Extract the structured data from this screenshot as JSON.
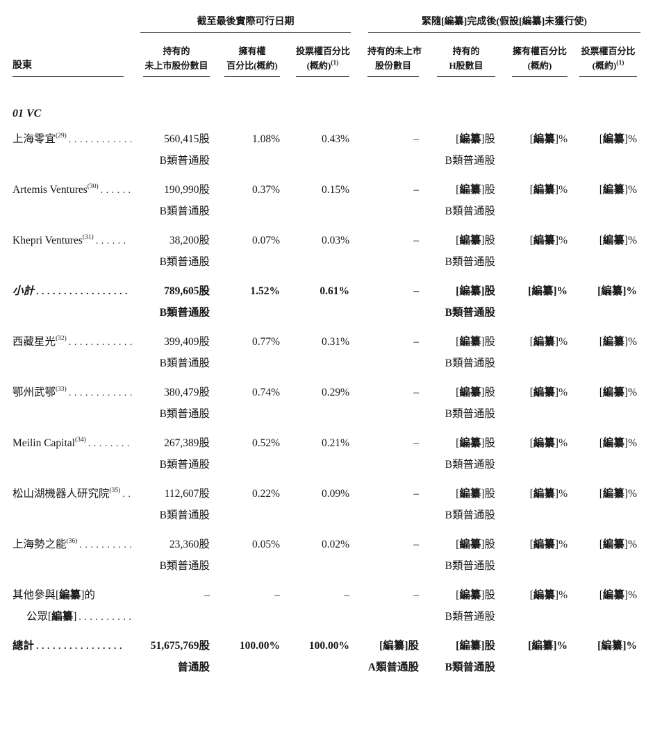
{
  "page": {
    "background": "#ffffff",
    "text_color": "#161616",
    "rule_color": "#1a1a1a"
  },
  "table": {
    "group_headers": [
      {
        "label": "截至最後實際可行日期"
      },
      {
        "label": "緊隨[編纂]完成後(假設[編纂]未獲行使)"
      }
    ],
    "columns": [
      {
        "line1": "股東",
        "line2": "",
        "sup": ""
      },
      {
        "line1": "持有的",
        "line2": "未上市股份數目",
        "sup": ""
      },
      {
        "line1": "擁有權",
        "line2": "百分比(概約)",
        "sup": ""
      },
      {
        "line1": "投票權百分比",
        "line2": "(概約)",
        "sup": "(1)"
      },
      {
        "line1": "持有的未上市",
        "line2": "股份數目",
        "sup": ""
      },
      {
        "line1": "持有的",
        "line2": "H股數目",
        "sup": ""
      },
      {
        "line1": "擁有權百分比",
        "line2": "(概約)",
        "sup": ""
      },
      {
        "line1": "投票權百分比",
        "line2": "(概約)",
        "sup": "(1)"
      }
    ],
    "section_label": "01 VC",
    "rows": [
      {
        "label": "上海零宜",
        "sup": "(29)",
        "dots": "............",
        "label2": "",
        "dots2": "",
        "v2": "560,415股",
        "c2": "B類普通股",
        "v3": "1.08%",
        "v4": "0.43%",
        "v5": "–",
        "c5": "",
        "v6": "[編纂]股",
        "c6": "B類普通股",
        "v7": "[編纂]%",
        "v8": "[編纂]%"
      },
      {
        "label": "Artemis Ventures",
        "sup": "(30)",
        "dots": "......",
        "label2": "",
        "dots2": "",
        "v2": "190,990股",
        "c2": "B類普通股",
        "v3": "0.37%",
        "v4": "0.15%",
        "v5": "–",
        "c5": "",
        "v6": "[編纂]股",
        "c6": "B類普通股",
        "v7": "[編纂]%",
        "v8": "[編纂]%"
      },
      {
        "label": "Khepri Ventures",
        "sup": "(31)",
        "dots": "......",
        "label2": "",
        "dots2": "",
        "v2": "38,200股",
        "c2": "B類普通股",
        "v3": "0.07%",
        "v4": "0.03%",
        "v5": "–",
        "c5": "",
        "v6": "[編纂]股",
        "c6": "B類普通股",
        "v7": "[編纂]%",
        "v8": "[編纂]%"
      },
      {
        "label": "小計",
        "sup": "",
        "dots": ".................",
        "label2": "",
        "dots2": "",
        "bold": true,
        "italic": true,
        "v2": "789,605股",
        "c2": "B類普通股",
        "v3": "1.52%",
        "v4": "0.61%",
        "v5": "–",
        "c5": "",
        "v6": "[編纂]股",
        "c6": "B類普通股",
        "v7": "[編纂]%",
        "v8": "[編纂]%"
      },
      {
        "label": "西藏星光",
        "sup": "(32)",
        "dots": "............",
        "label2": "",
        "dots2": "",
        "v2": "399,409股",
        "c2": "B類普通股",
        "v3": "0.77%",
        "v4": "0.31%",
        "v5": "–",
        "c5": "",
        "v6": "[編纂]股",
        "c6": "B類普通股",
        "v7": "[編纂]%",
        "v8": "[編纂]%"
      },
      {
        "label": "鄂州武鄂",
        "sup": "(33)",
        "dots": "............",
        "label2": "",
        "dots2": "",
        "v2": "380,479股",
        "c2": "B類普通股",
        "v3": "0.74%",
        "v4": "0.29%",
        "v5": "–",
        "c5": "",
        "v6": "[編纂]股",
        "c6": "B類普通股",
        "v7": "[編纂]%",
        "v8": "[編纂]%"
      },
      {
        "label": "Meilin Capital",
        "sup": "(34)",
        "dots": "........",
        "label2": "",
        "dots2": "",
        "v2": "267,389股",
        "c2": "B類普通股",
        "v3": "0.52%",
        "v4": "0.21%",
        "v5": "–",
        "c5": "",
        "v6": "[編纂]股",
        "c6": "B類普通股",
        "v7": "[編纂]%",
        "v8": "[編纂]%"
      },
      {
        "label": "松山湖機器人研究院",
        "sup": "(35)",
        "dots": "..",
        "label2": "",
        "dots2": "",
        "v2": "112,607股",
        "c2": "B類普通股",
        "v3": "0.22%",
        "v4": "0.09%",
        "v5": "–",
        "c5": "",
        "v6": "[編纂]股",
        "c6": "B類普通股",
        "v7": "[編纂]%",
        "v8": "[編纂]%"
      },
      {
        "label": "上海勢之能",
        "sup": "(36)",
        "dots": "..........",
        "label2": "",
        "dots2": "",
        "v2": "23,360股",
        "c2": "B類普通股",
        "v3": "0.05%",
        "v4": "0.02%",
        "v5": "–",
        "c5": "",
        "v6": "[編纂]股",
        "c6": "B類普通股",
        "v7": "[編纂]%",
        "v8": "[編纂]%"
      },
      {
        "label": "其他參與[編纂]的",
        "sup": "",
        "dots": "",
        "label2": "公眾[編纂]",
        "dots2": "..........",
        "v2": "–",
        "c2": "",
        "v3": "–",
        "v4": "–",
        "v5": "–",
        "c5": "",
        "v6": "[編纂]股",
        "c6": "B類普通股",
        "v7": "[編纂]%",
        "v8": "[編纂]%"
      },
      {
        "label": "總計",
        "sup": "",
        "dots": "................",
        "label2": "",
        "dots2": "",
        "bold": true,
        "v2": "51,675,769股",
        "c2": "普通股",
        "v3": "100.00%",
        "v4": "100.00%",
        "v5": "[編纂]股",
        "c5": "A類普通股",
        "v6": "[編纂]股",
        "c6": "B類普通股",
        "v7": "[編纂]%",
        "v8": "[編纂]%"
      }
    ]
  }
}
